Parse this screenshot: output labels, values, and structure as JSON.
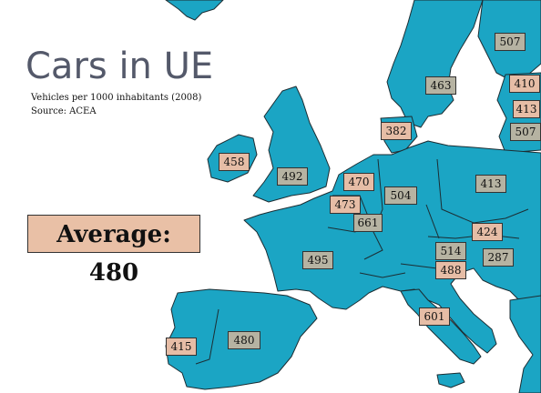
{
  "title": "Cars in UE",
  "subtitle": "Vehicles per 1000 inhabitants (2008)",
  "source": "Source: ACEA",
  "average": "Average: 480",
  "colors": {
    "land": "#1ba5c4",
    "border": "#1c2d33",
    "label_grey": "#b6b3a2",
    "label_peach": "#e6bda6",
    "title": "#54596a"
  },
  "labels": [
    {
      "id": "finland",
      "value": "507",
      "style": "grey"
    },
    {
      "id": "sweden",
      "value": "463",
      "style": "grey"
    },
    {
      "id": "estonia",
      "value": "410",
      "style": "peach"
    },
    {
      "id": "latvia",
      "value": "413",
      "style": "peach"
    },
    {
      "id": "lithuania",
      "value": "507",
      "style": "grey"
    },
    {
      "id": "denmark",
      "value": "382",
      "style": "peach"
    },
    {
      "id": "ireland",
      "value": "458",
      "style": "peach"
    },
    {
      "id": "uk",
      "value": "492",
      "style": "grey"
    },
    {
      "id": "netherlands",
      "value": "470",
      "style": "peach"
    },
    {
      "id": "belgium",
      "value": "473",
      "style": "peach"
    },
    {
      "id": "luxembourg",
      "value": "661",
      "style": "grey"
    },
    {
      "id": "germany",
      "value": "504",
      "style": "grey"
    },
    {
      "id": "poland",
      "value": "413",
      "style": "grey"
    },
    {
      "id": "slovakia",
      "value": "424",
      "style": "peach"
    },
    {
      "id": "austria",
      "value": "514",
      "style": "grey"
    },
    {
      "id": "hungary",
      "value": "287",
      "style": "grey"
    },
    {
      "id": "slovenia",
      "value": "488",
      "style": "peach"
    },
    {
      "id": "france",
      "value": "495",
      "style": "grey"
    },
    {
      "id": "italy",
      "value": "601",
      "style": "peach"
    },
    {
      "id": "spain",
      "value": "480",
      "style": "grey"
    },
    {
      "id": "portugal",
      "value": "415",
      "style": "peach"
    }
  ]
}
